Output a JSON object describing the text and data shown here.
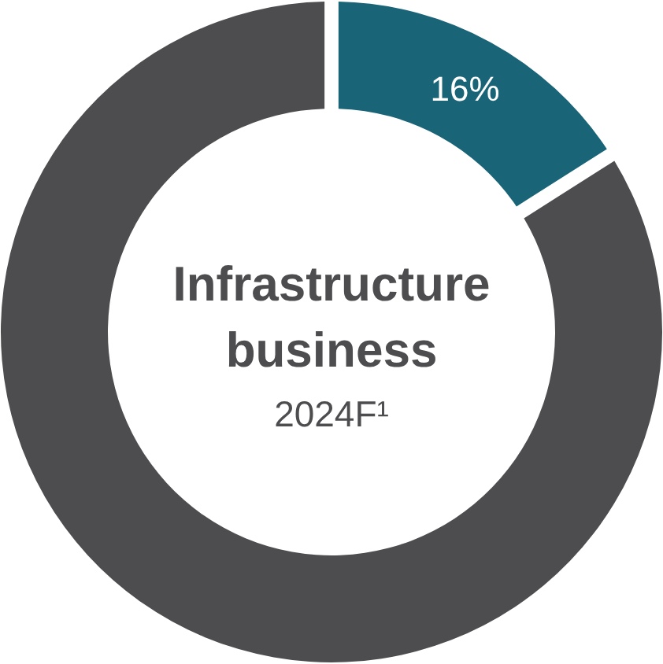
{
  "chart_data": {
    "type": "donut",
    "title": "Infrastructure business",
    "subtitle": "2024F¹",
    "categories": [
      null,
      null
    ],
    "values": [
      16,
      84
    ],
    "colors": [
      "#1a6478",
      "#4d4d4f"
    ],
    "value_labels": [
      "16%",
      null
    ]
  }
}
